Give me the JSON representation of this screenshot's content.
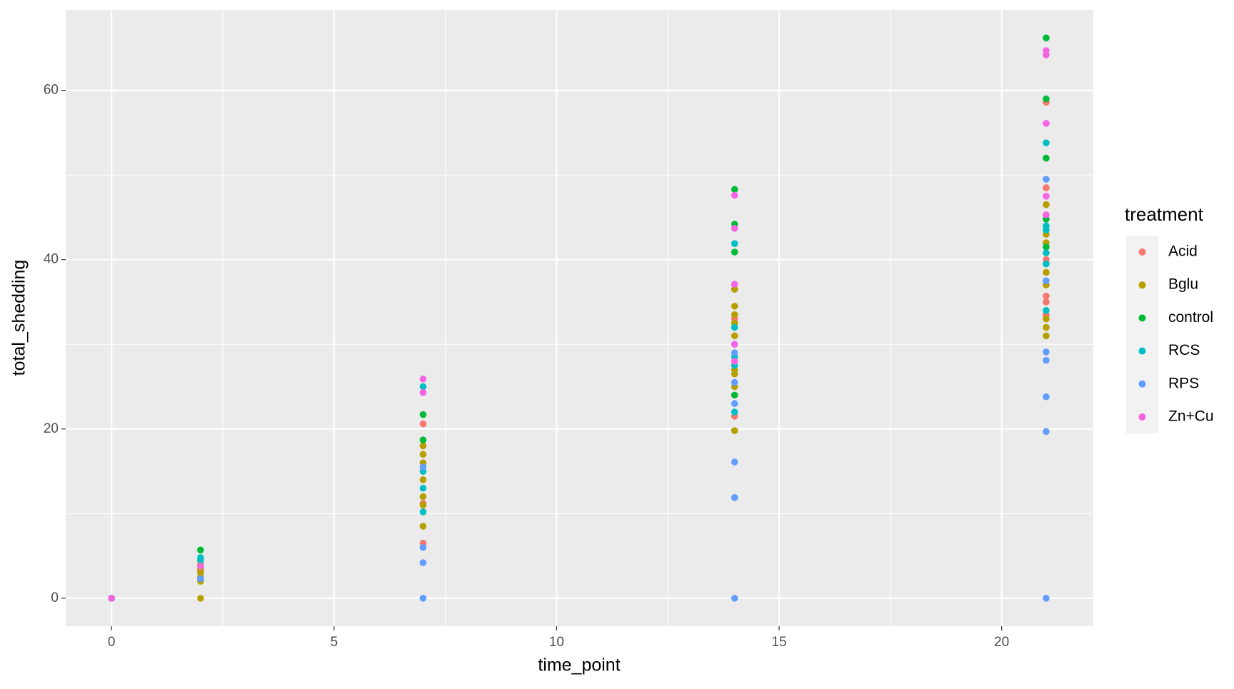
{
  "chart_data": {
    "type": "scatter",
    "x_label": "time_point",
    "y_label": "total_shedding",
    "legend_title": "treatment",
    "legend_position": "right",
    "xlim": [
      -1.03,
      22.06
    ],
    "ylim": [
      -3.3,
      69.5
    ],
    "xticks": [
      0,
      5,
      10,
      15,
      20
    ],
    "yticks": [
      0,
      20,
      40,
      60
    ],
    "x_minor_ticks": [
      2.5,
      7.5,
      12.5,
      17.5
    ],
    "y_minor_ticks": [
      10,
      30,
      50
    ],
    "grid": true,
    "series": [
      {
        "name": "Acid",
        "color": "#F8766D",
        "x": [
          0,
          2,
          7,
          7,
          7,
          14,
          14,
          14,
          21,
          21,
          21,
          21,
          21,
          21
        ],
        "values": [
          0,
          3.2,
          20.6,
          6.5,
          11.2,
          24,
          21.5,
          33,
          58.6,
          48.5,
          35.7,
          35,
          40,
          33.5
        ]
      },
      {
        "name": "Bglu",
        "color": "#B79F00",
        "x": [
          0,
          2,
          2,
          2,
          2,
          2,
          2,
          2,
          7,
          7,
          7,
          7,
          7,
          7,
          7,
          7,
          14,
          14,
          14,
          14,
          14,
          14,
          14,
          14,
          14,
          21,
          21,
          21,
          21,
          21,
          21,
          21,
          21
        ],
        "values": [
          0,
          0,
          2,
          2.5,
          3,
          3.5,
          4,
          4.5,
          8.5,
          11,
          12,
          14,
          15,
          16,
          17,
          18,
          19.8,
          25,
          26.5,
          27,
          31,
          32.5,
          33.5,
          34.5,
          36.5,
          31,
          32,
          33,
          37,
          38.5,
          42,
          43,
          46.5
        ]
      },
      {
        "name": "control",
        "color": "#00BA38",
        "x": [
          0,
          2,
          7,
          7,
          14,
          14,
          14,
          14,
          21,
          21,
          21,
          21,
          21
        ],
        "values": [
          0,
          5.7,
          21.7,
          18.7,
          48.3,
          44.2,
          40.9,
          24,
          66.2,
          59,
          52,
          44.8,
          41.5
        ]
      },
      {
        "name": "RCS",
        "color": "#00BFC4",
        "x": [
          0,
          2,
          2,
          7,
          7,
          7,
          7,
          14,
          14,
          14,
          14,
          14,
          14,
          21,
          21,
          21,
          21,
          21,
          21
        ],
        "values": [
          0,
          4.8,
          4.5,
          25,
          10.2,
          13,
          15,
          41.9,
          32,
          28.5,
          27.5,
          22,
          30,
          53.8,
          44,
          43.5,
          40.8,
          39.5,
          34
        ]
      },
      {
        "name": "RPS",
        "color": "#619CFF",
        "x": [
          0,
          2,
          7,
          7,
          7,
          7,
          14,
          14,
          14,
          14,
          14,
          14,
          21,
          21,
          21,
          21,
          21,
          21,
          21
        ],
        "values": [
          0,
          2.3,
          0,
          4.2,
          6,
          15.5,
          0,
          11.9,
          16.1,
          23,
          25.5,
          29,
          0,
          19.7,
          23.8,
          28.1,
          29.1,
          49.5,
          37.5
        ]
      },
      {
        "name": "Zn+Cu",
        "color": "#F564E3",
        "x": [
          0,
          2,
          7,
          7,
          14,
          14,
          14,
          14,
          14,
          21,
          21,
          21,
          21,
          21
        ],
        "values": [
          0,
          3.8,
          25.9,
          24.3,
          47.6,
          43.7,
          37.1,
          30,
          28,
          64.7,
          64.2,
          56.1,
          47.5,
          45.3
        ]
      }
    ]
  }
}
